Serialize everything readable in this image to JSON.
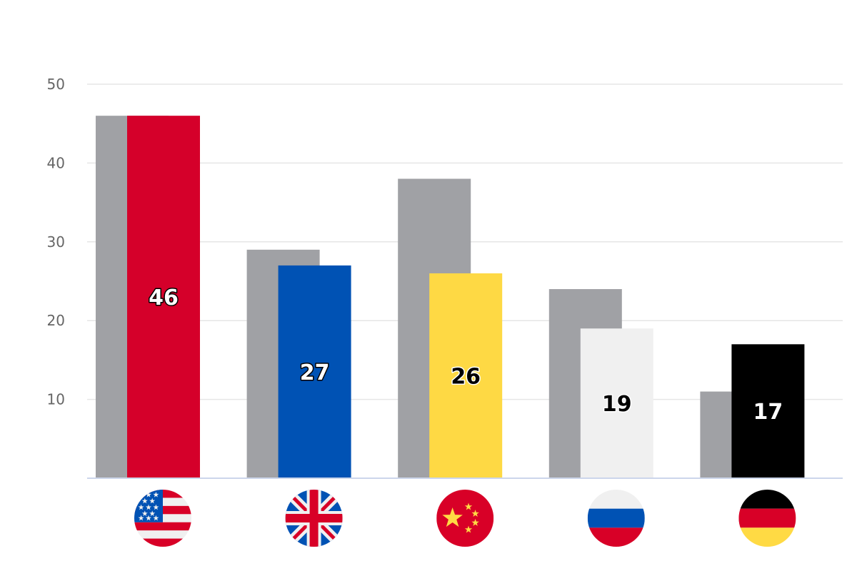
{
  "chart_data": {
    "type": "bar",
    "title": "",
    "xlabel": "",
    "ylabel": "",
    "ylim": [
      0,
      50
    ],
    "yticks": [
      10,
      20,
      30,
      40,
      50
    ],
    "grid": true,
    "legend": "none",
    "categories": [
      "United States",
      "Great Britain",
      "China",
      "Russia",
      "Germany"
    ],
    "category_icons": [
      "us-flag-icon",
      "gb-flag-icon",
      "cn-flag-icon",
      "ru-flag-icon",
      "de-flag-icon"
    ],
    "series": [
      {
        "values": [
          46,
          29,
          38,
          24,
          11
        ],
        "colors": [
          "#a0a1a5",
          "#a0a1a5",
          "#a0a1a5",
          "#a0a1a5",
          "#a0a1a5"
        ],
        "labels_visible": false
      },
      {
        "values": [
          46,
          27,
          26,
          19,
          17
        ],
        "colors": [
          "#d5002a",
          "#0052b4",
          "#fed944",
          "#f0f0f0",
          "#000000"
        ],
        "labels_visible": true,
        "label_colors": [
          "#ffffff",
          "#ffffff",
          "#000000",
          "#000000",
          "#ffffff"
        ]
      }
    ]
  }
}
